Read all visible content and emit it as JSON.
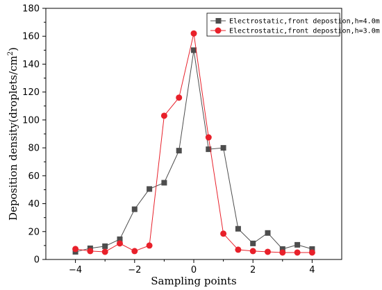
{
  "chart_data": {
    "type": "line",
    "xlabel": "Sampling points",
    "ylabel_main": "Deposition density(droplets/cm",
    "ylabel_sup": "2",
    "ylabel_close": ")",
    "xlim": [
      -5,
      5
    ],
    "ylim": [
      0,
      180
    ],
    "x_ticks": [
      -4,
      -2,
      0,
      2,
      4
    ],
    "x_tick_labels": [
      "−4",
      "−2",
      "0",
      "2",
      "4"
    ],
    "y_ticks": [
      0,
      20,
      40,
      60,
      80,
      100,
      120,
      140,
      160,
      180
    ],
    "y_tick_labels": [
      "0",
      "20",
      "40",
      "60",
      "80",
      "100",
      "120",
      "140",
      "160",
      "180"
    ],
    "legend_position": "top-right",
    "series": [
      {
        "name": "Electrostatic,front depostion,h=4.0m",
        "color": "#4d4d4d",
        "marker": "square",
        "x": [
          -4,
          -3.5,
          -3,
          -2.5,
          -2,
          -1.5,
          -1,
          -0.5,
          0,
          0.5,
          1,
          1.5,
          2,
          2.5,
          3,
          3.5,
          4
        ],
        "values": [
          5.5,
          8,
          9.5,
          14.5,
          36,
          50.5,
          55,
          78,
          150,
          79,
          80,
          22,
          11.5,
          19,
          7.5,
          10.5,
          7.5
        ]
      },
      {
        "name": "Electrostatic,front depostion,h=3.0m",
        "color": "#e8202a",
        "marker": "circle",
        "x": [
          -4,
          -3.5,
          -3,
          -2.5,
          -2,
          -1.5,
          -1,
          -0.5,
          0,
          0.5,
          1,
          1.5,
          2,
          2.5,
          3,
          3.5,
          4
        ],
        "values": [
          7.5,
          6,
          5.5,
          11.5,
          6,
          10,
          103,
          116,
          162,
          87.5,
          18.5,
          7,
          6,
          5.5,
          5,
          5,
          5
        ]
      }
    ]
  }
}
